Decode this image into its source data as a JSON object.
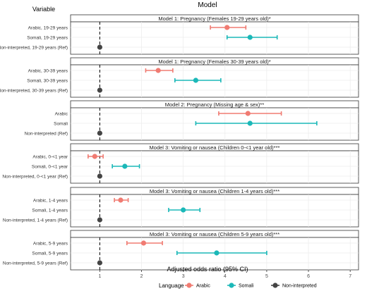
{
  "chart_data": {
    "type": "forest",
    "title": "Model",
    "row_header": "Variable",
    "xlabel": "Adjusted odds ratio (95% CI)",
    "xlim": [
      0.3,
      7.2
    ],
    "x_ticks": [
      1,
      2,
      3,
      4,
      5,
      6,
      7
    ],
    "reference_line": 1,
    "grid": true,
    "legend": {
      "title": "Language",
      "position": "bottom",
      "entries": [
        {
          "label": "Arabic",
          "color": "#F07B72"
        },
        {
          "label": "Somali",
          "color": "#1BB8B8"
        },
        {
          "label": "Non-interpreted",
          "color": "#444444"
        }
      ]
    },
    "panels": [
      {
        "title": "Model 1: Pregnancy (Females 19-29 years old)*",
        "rows": [
          {
            "label": "Arabic, 19-29 years",
            "group": "Arabic",
            "estimate": 4.05,
            "lower": 3.65,
            "upper": 4.5
          },
          {
            "label": "Somali, 19-29 years",
            "group": "Somali",
            "estimate": 4.6,
            "lower": 4.05,
            "upper": 5.25
          },
          {
            "label": "Non-interpreted, 19-29 years (Ref)",
            "group": "Non-interpreted",
            "estimate": 1.0,
            "lower": 1.0,
            "upper": 1.0
          }
        ]
      },
      {
        "title": "Model 1: Pregnancy (Females 30-39 years old)*",
        "rows": [
          {
            "label": "Arabic, 30-39 years",
            "group": "Arabic",
            "estimate": 2.4,
            "lower": 2.1,
            "upper": 2.75
          },
          {
            "label": "Somali, 30-39 years",
            "group": "Somali",
            "estimate": 3.3,
            "lower": 2.8,
            "upper": 3.9
          },
          {
            "label": "Non-interpreted, 30-39 years (Ref)",
            "group": "Non-interpreted",
            "estimate": 1.0,
            "lower": 1.0,
            "upper": 1.0
          }
        ]
      },
      {
        "title": "Model 2: Pregnancy (Missing age & sex)**",
        "rows": [
          {
            "label": "Arabic",
            "group": "Arabic",
            "estimate": 4.55,
            "lower": 3.85,
            "upper": 5.35
          },
          {
            "label": "Somali",
            "group": "Somali",
            "estimate": 4.6,
            "lower": 3.3,
            "upper": 6.2
          },
          {
            "label": "Non-interpreted (Ref)",
            "group": "Non-interpreted",
            "estimate": 1.0,
            "lower": 1.0,
            "upper": 1.0
          }
        ]
      },
      {
        "title": "Model 3: Vomiting or nausea (Children 0-<1 year old)***",
        "rows": [
          {
            "label": "Arabic, 0-<1 year",
            "group": "Arabic",
            "estimate": 0.88,
            "lower": 0.72,
            "upper": 1.08
          },
          {
            "label": "Somali, 0-<1 year",
            "group": "Somali",
            "estimate": 1.6,
            "lower": 1.3,
            "upper": 1.95
          },
          {
            "label": "Non-interpreted, 0-<1 year (Ref)",
            "group": "Non-interpreted",
            "estimate": 1.0,
            "lower": 1.0,
            "upper": 1.0
          }
        ]
      },
      {
        "title": "Model 3: Vomiting or nausea (Children 1-4 years old)***",
        "rows": [
          {
            "label": "Arabic, 1-4 years",
            "group": "Arabic",
            "estimate": 1.5,
            "lower": 1.35,
            "upper": 1.68
          },
          {
            "label": "Somali, 1-4 years",
            "group": "Somali",
            "estimate": 3.0,
            "lower": 2.65,
            "upper": 3.4
          },
          {
            "label": "Non-interpreted, 1-4 years (Ref)",
            "group": "Non-interpreted",
            "estimate": 1.0,
            "lower": 1.0,
            "upper": 1.0
          }
        ]
      },
      {
        "title": "Model 3: Vomiting or nausea (Children 5-9 years old)***",
        "rows": [
          {
            "label": "Arabic, 5-9 years",
            "group": "Arabic",
            "estimate": 2.05,
            "lower": 1.65,
            "upper": 2.5
          },
          {
            "label": "Somali, 5-9 years",
            "group": "Somali",
            "estimate": 3.8,
            "lower": 2.85,
            "upper": 5.0
          },
          {
            "label": "Non-interpreted, 5-9 years (Ref)",
            "group": "Non-interpreted",
            "estimate": 1.0,
            "lower": 1.0,
            "upper": 1.0
          }
        ]
      }
    ]
  }
}
